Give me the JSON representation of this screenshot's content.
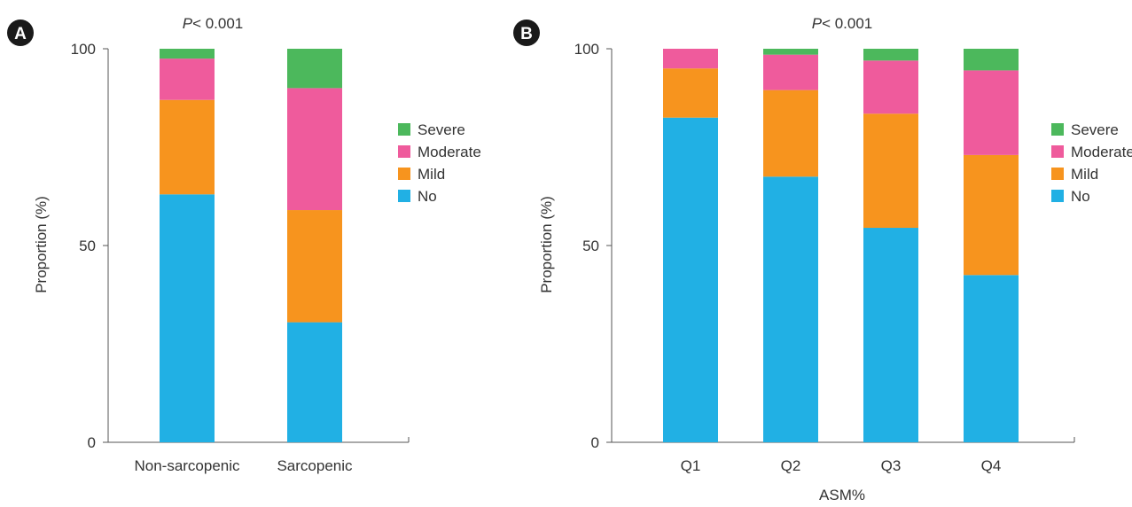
{
  "legend": [
    "Severe",
    "Moderate",
    "Mild",
    "No"
  ],
  "colors": {
    "No": "#21b0e4",
    "Mild": "#f7941e",
    "Moderate": "#ef5b9c",
    "Severe": "#4cb85c"
  },
  "chart_data": [
    {
      "type": "bar",
      "stacked": true,
      "panel_label": "A",
      "pvalue": {
        "label": "P",
        "text": "< 0.001"
      },
      "categories": [
        "Non-sarcopenic",
        "Sarcopenic"
      ],
      "series": [
        {
          "name": "No",
          "values": [
            63,
            30.5
          ]
        },
        {
          "name": "Mild",
          "values": [
            24,
            28.5
          ]
        },
        {
          "name": "Moderate",
          "values": [
            10.5,
            31
          ]
        },
        {
          "name": "Severe",
          "values": [
            2.5,
            10
          ]
        }
      ],
      "ylabel": "Proportion (%)",
      "xlabel": "",
      "yticks": [
        0,
        50,
        100
      ],
      "ylim": [
        0,
        100
      ],
      "grid": false,
      "legend_position": "right"
    },
    {
      "type": "bar",
      "stacked": true,
      "panel_label": "B",
      "pvalue": {
        "label": "P",
        "text": "< 0.001"
      },
      "categories": [
        "Q1",
        "Q2",
        "Q3",
        "Q4"
      ],
      "series": [
        {
          "name": "No",
          "values": [
            82.5,
            67.5,
            54.5,
            42.5
          ]
        },
        {
          "name": "Mild",
          "values": [
            12.5,
            22,
            29,
            30.5
          ]
        },
        {
          "name": "Moderate",
          "values": [
            5,
            9,
            13.5,
            21.5
          ]
        },
        {
          "name": "Severe",
          "values": [
            0,
            1.5,
            3,
            5.5
          ]
        }
      ],
      "ylabel": "Proportion (%)",
      "xlabel": "ASM%",
      "yticks": [
        0,
        50,
        100
      ],
      "ylim": [
        0,
        100
      ],
      "grid": false,
      "legend_position": "right"
    }
  ]
}
